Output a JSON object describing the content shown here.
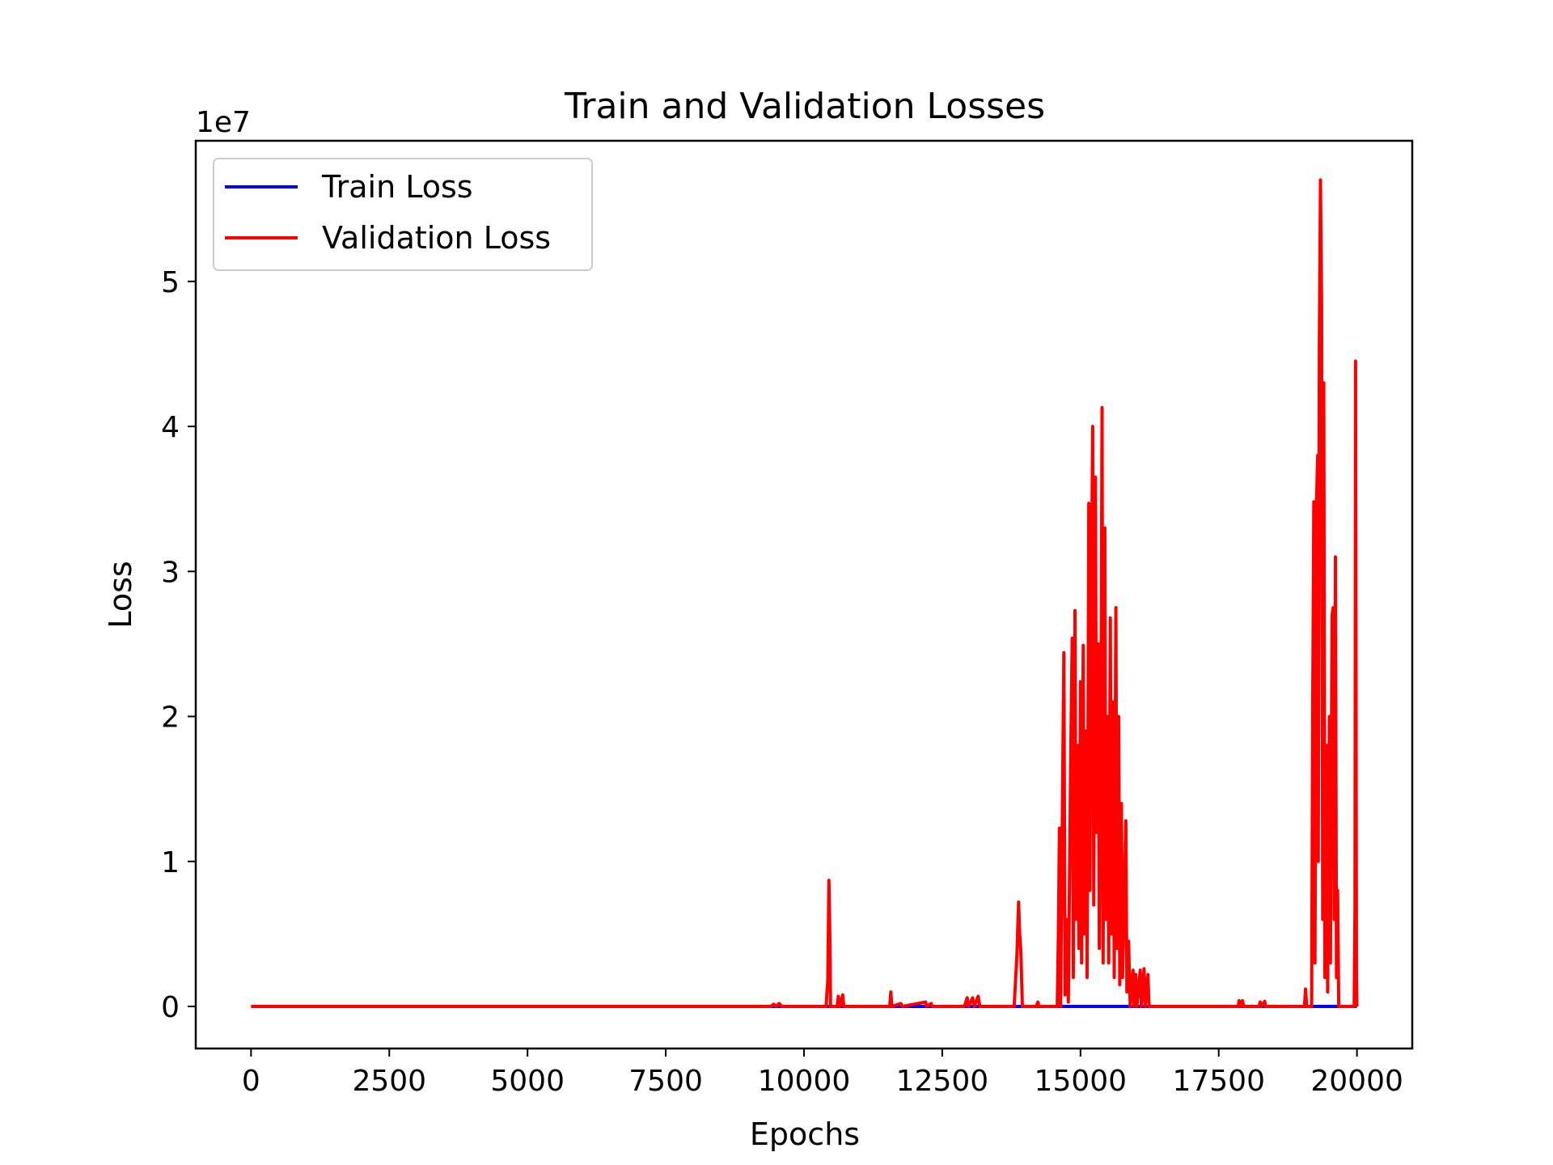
{
  "chart_data": {
    "type": "line",
    "title": "Train and Validation Losses",
    "xlabel": "Epochs",
    "ylabel": "Loss",
    "y_offset_label": "1e7",
    "y_scale": 10000000,
    "xlim": [
      -1000,
      21000
    ],
    "ylim": [
      -2900000,
      59700000
    ],
    "x_ticks": [
      0,
      2500,
      5000,
      7500,
      10000,
      12500,
      15000,
      17500,
      20000
    ],
    "x_tick_labels": [
      "0",
      "2500",
      "5000",
      "7500",
      "10000",
      "12500",
      "15000",
      "17500",
      "20000"
    ],
    "y_ticks": [
      0,
      10000000,
      20000000,
      30000000,
      40000000,
      50000000
    ],
    "y_tick_labels": [
      "0",
      "1",
      "2",
      "3",
      "4",
      "5"
    ],
    "grid": false,
    "legend_position": "top-left",
    "series": [
      {
        "name": "Train Loss",
        "color": "#0000ff",
        "points": [
          [
            0,
            0
          ],
          [
            20000,
            0
          ]
        ]
      },
      {
        "name": "Validation Loss",
        "color": "#ff0000",
        "points": [
          [
            0,
            0
          ],
          [
            9400,
            0
          ],
          [
            9450,
            150000
          ],
          [
            9500,
            0
          ],
          [
            9550,
            200000
          ],
          [
            9600,
            0
          ],
          [
            10400,
            0
          ],
          [
            10430,
            1800000
          ],
          [
            10450,
            8700000
          ],
          [
            10470,
            4500000
          ],
          [
            10480,
            0
          ],
          [
            10600,
            0
          ],
          [
            10620,
            700000
          ],
          [
            10650,
            0
          ],
          [
            10700,
            800000
          ],
          [
            10720,
            0
          ],
          [
            11550,
            0
          ],
          [
            11570,
            1000000
          ],
          [
            11590,
            0
          ],
          [
            11750,
            200000
          ],
          [
            11780,
            0
          ],
          [
            12200,
            300000
          ],
          [
            12220,
            0
          ],
          [
            12300,
            200000
          ],
          [
            12320,
            0
          ],
          [
            12900,
            0
          ],
          [
            12950,
            600000
          ],
          [
            12980,
            0
          ],
          [
            13050,
            600000
          ],
          [
            13080,
            0
          ],
          [
            13150,
            700000
          ],
          [
            13180,
            0
          ],
          [
            13800,
            0
          ],
          [
            13850,
            3500000
          ],
          [
            13880,
            7200000
          ],
          [
            13900,
            5000000
          ],
          [
            13920,
            3900000
          ],
          [
            13950,
            0
          ],
          [
            14200,
            0
          ],
          [
            14230,
            300000
          ],
          [
            14250,
            0
          ],
          [
            14580,
            0
          ],
          [
            14600,
            5000000
          ],
          [
            14620,
            12300000
          ],
          [
            14640,
            0
          ],
          [
            14700,
            24400000
          ],
          [
            14720,
            800000
          ],
          [
            14760,
            6000000
          ],
          [
            14780,
            300000
          ],
          [
            14820,
            16000000
          ],
          [
            14850,
            25400000
          ],
          [
            14870,
            2000000
          ],
          [
            14900,
            27300000
          ],
          [
            14920,
            6000000
          ],
          [
            14950,
            18000000
          ],
          [
            14970,
            4000000
          ],
          [
            15000,
            22400000
          ],
          [
            15020,
            3000000
          ],
          [
            15050,
            24900000
          ],
          [
            15070,
            5000000
          ],
          [
            15100,
            19000000
          ],
          [
            15120,
            2000000
          ],
          [
            15150,
            34700000
          ],
          [
            15170,
            8000000
          ],
          [
            15200,
            30000000
          ],
          [
            15220,
            40000000
          ],
          [
            15240,
            7000000
          ],
          [
            15270,
            36500000
          ],
          [
            15290,
            12000000
          ],
          [
            15320,
            25000000
          ],
          [
            15340,
            4000000
          ],
          [
            15370,
            19000000
          ],
          [
            15390,
            41300000
          ],
          [
            15410,
            3000000
          ],
          [
            15440,
            33000000
          ],
          [
            15460,
            6000000
          ],
          [
            15490,
            20000000
          ],
          [
            15510,
            3000000
          ],
          [
            15540,
            26800000
          ],
          [
            15560,
            5000000
          ],
          [
            15590,
            21000000
          ],
          [
            15610,
            2000000
          ],
          [
            15640,
            27500000
          ],
          [
            15660,
            4000000
          ],
          [
            15690,
            20000000
          ],
          [
            15710,
            1500000
          ],
          [
            15740,
            14000000
          ],
          [
            15760,
            2000000
          ],
          [
            15800,
            9000000
          ],
          [
            15820,
            12800000
          ],
          [
            15840,
            1000000
          ],
          [
            15870,
            4500000
          ],
          [
            15900,
            0
          ],
          [
            15950,
            2500000
          ],
          [
            15970,
            0
          ],
          [
            16000,
            2200000
          ],
          [
            16020,
            0
          ],
          [
            16080,
            2500000
          ],
          [
            16100,
            0
          ],
          [
            16150,
            2600000
          ],
          [
            16170,
            0
          ],
          [
            16220,
            2200000
          ],
          [
            16240,
            0
          ],
          [
            17850,
            0
          ],
          [
            17870,
            400000
          ],
          [
            17890,
            0
          ],
          [
            17930,
            400000
          ],
          [
            17950,
            0
          ],
          [
            18230,
            0
          ],
          [
            18250,
            300000
          ],
          [
            18270,
            0
          ],
          [
            18330,
            350000
          ],
          [
            18350,
            0
          ],
          [
            19050,
            0
          ],
          [
            19070,
            1200000
          ],
          [
            19090,
            0
          ],
          [
            19180,
            0
          ],
          [
            19200,
            20500000
          ],
          [
            19220,
            34800000
          ],
          [
            19240,
            3000000
          ],
          [
            19270,
            35000000
          ],
          [
            19290,
            38000000
          ],
          [
            19300,
            10000000
          ],
          [
            19320,
            45500000
          ],
          [
            19340,
            57000000
          ],
          [
            19360,
            48500000
          ],
          [
            19380,
            6000000
          ],
          [
            19400,
            43000000
          ],
          [
            19420,
            2000000
          ],
          [
            19450,
            18000000
          ],
          [
            19470,
            1000000
          ],
          [
            19500,
            20000000
          ],
          [
            19520,
            3000000
          ],
          [
            19550,
            27000000
          ],
          [
            19570,
            27500000
          ],
          [
            19590,
            6000000
          ],
          [
            19610,
            31000000
          ],
          [
            19630,
            2000000
          ],
          [
            19650,
            8000000
          ],
          [
            19670,
            0
          ],
          [
            19950,
            0
          ],
          [
            19965,
            6800000
          ],
          [
            19975,
            44500000
          ],
          [
            19990,
            2000000
          ],
          [
            20000,
            0
          ]
        ]
      }
    ]
  }
}
